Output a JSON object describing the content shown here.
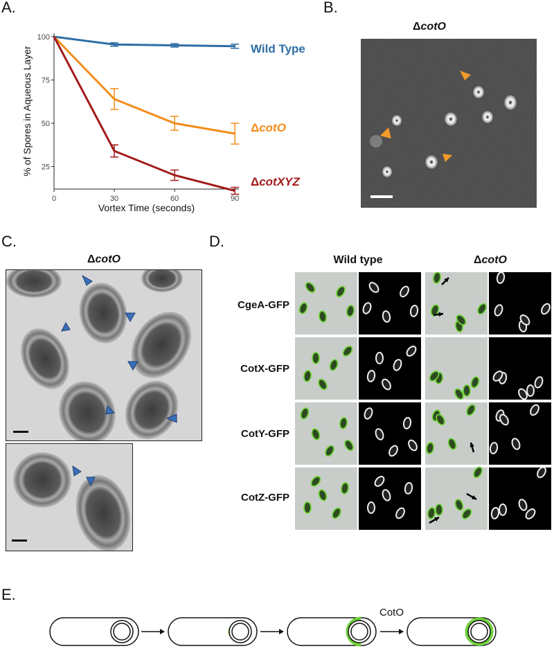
{
  "panels": {
    "a": "A.",
    "b": "B.",
    "c": "C.",
    "d": "D.",
    "e": "E."
  },
  "colors": {
    "wild_type": "#2e6da4",
    "cotO": "#f28c1a",
    "cotXYZ": "#a31a1a",
    "gfp": "#6fd23a",
    "arrow_blue": "#3a6fb8",
    "arrow_orange": "#f29a2a"
  },
  "chart_data": {
    "type": "line",
    "xlabel": "Vortex Time (seconds)",
    "ylabel": "% of Spores in Aqueous Layer",
    "x": [
      0,
      30,
      60,
      90
    ],
    "xticks": [
      "0",
      "30",
      "60",
      "90"
    ],
    "yticks": [
      "25",
      "50",
      "75",
      "100"
    ],
    "xlim": [
      0,
      92
    ],
    "ylim": [
      12,
      102
    ],
    "grid": false,
    "legend": "right of lines",
    "series": [
      {
        "name": "Wild Type",
        "values": [
          100,
          95.5,
          95,
          94.5
        ],
        "err": [
          0,
          1,
          1,
          1.2
        ],
        "color": "#2e6da4"
      },
      {
        "name": "ΔcotO",
        "values": [
          100,
          64,
          50,
          44
        ],
        "err": [
          0,
          6,
          4,
          6
        ],
        "color": "#f28c1a"
      },
      {
        "name": "ΔcotXYZ",
        "values": [
          100,
          34,
          20,
          11
        ],
        "err": [
          0,
          3.5,
          3,
          2
        ],
        "color": "#a31a1a"
      }
    ]
  },
  "panel_b": {
    "title_delta": "Δ",
    "title_gene": "cotO"
  },
  "panel_c": {
    "title_delta": "Δ",
    "title_gene": "cotO"
  },
  "panel_d": {
    "col_wild": "Wild type",
    "col_mut_delta": "Δ",
    "col_mut_gene": "cotO",
    "rows": [
      "CgeA-GFP",
      "CotX-GFP",
      "CotY-GFP",
      "CotZ-GFP"
    ]
  },
  "panel_e": {
    "label": "CotO"
  }
}
